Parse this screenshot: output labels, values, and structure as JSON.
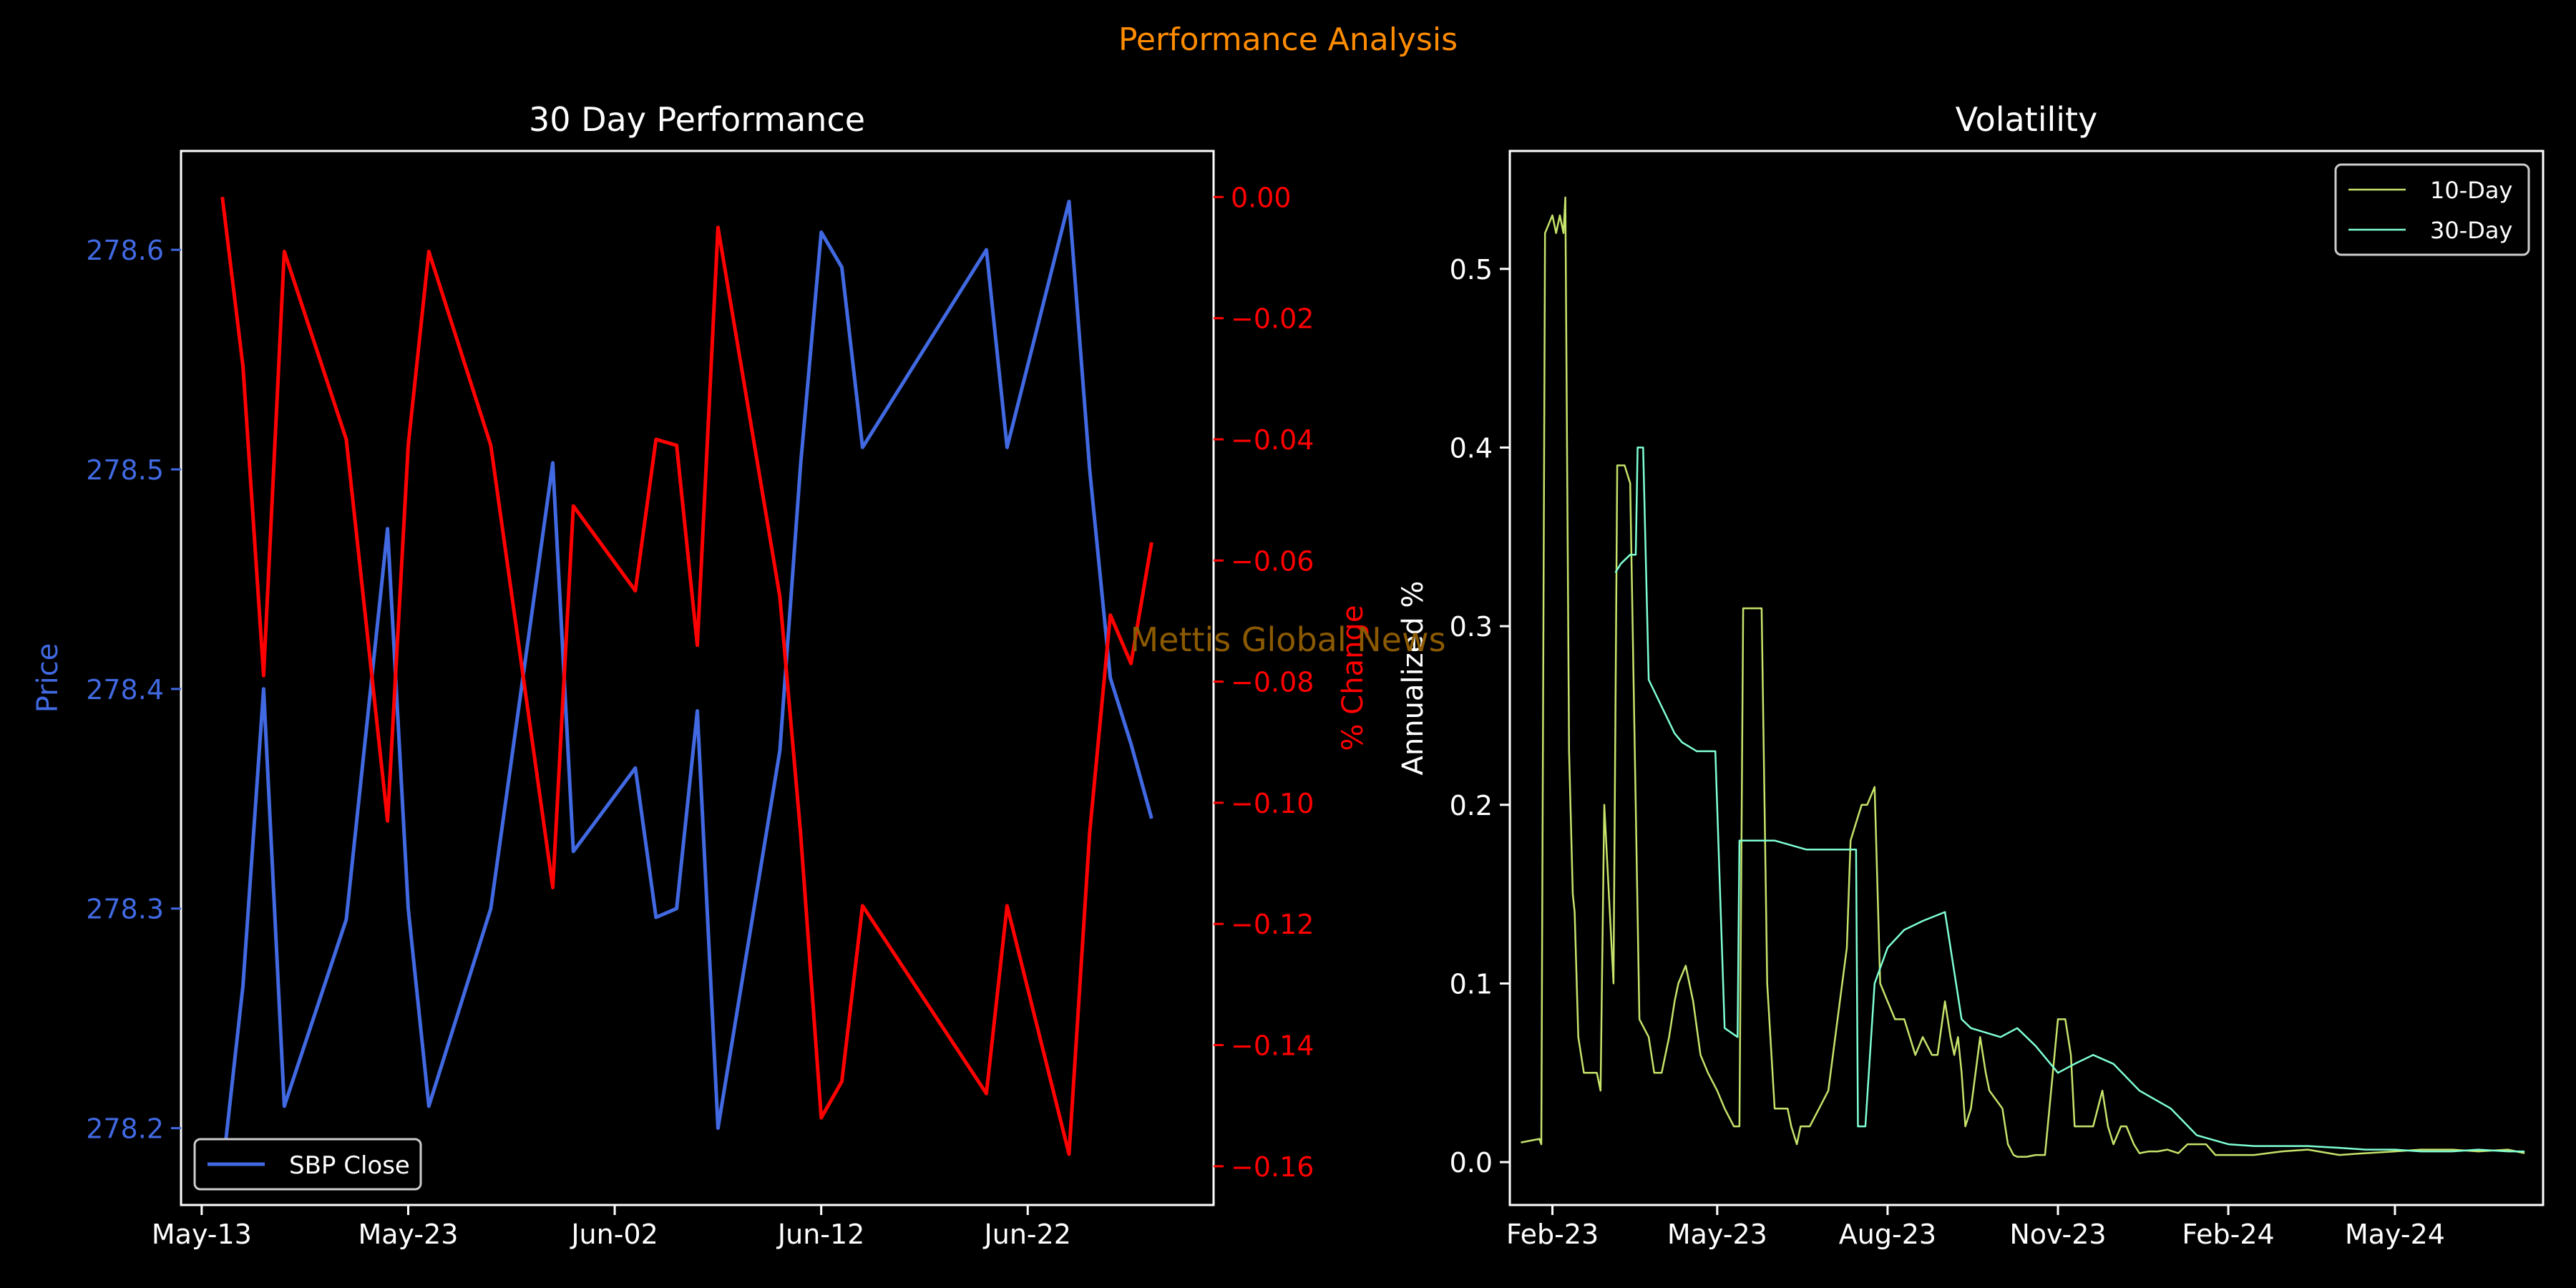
{
  "figure": {
    "suptitle": "Performance Analysis",
    "watermark": "Mettis Global News",
    "colors": {
      "background": "#000000",
      "suptitle": "#ff8c00",
      "price": "#4169e1",
      "pct": "#ff0000",
      "vol10": "#c6e36b",
      "vol30": "#7fffd4",
      "axes": "#ffffff",
      "watermark": "#8b5a00"
    }
  },
  "chart_data": [
    {
      "type": "line",
      "title": "30 Day Performance",
      "xlabel": "",
      "ylabel": "Price",
      "y2label": "% Change",
      "x_ticks": [
        "May-13",
        "May-23",
        "Jun-02",
        "Jun-12",
        "Jun-22"
      ],
      "x_tick_dates": [
        "2024-05-13",
        "2024-05-23",
        "2024-06-02",
        "2024-06-12",
        "2024-06-22"
      ],
      "xlim": [
        "2024-05-12",
        "2024-07-01"
      ],
      "ylim": [
        278.165,
        278.645
      ],
      "y2lim": [
        -0.1664,
        0.0076
      ],
      "y_ticks": [
        "278.2",
        "278.3",
        "278.4",
        "278.5",
        "278.6"
      ],
      "y2_ticks": [
        "0.00",
        "−0.02",
        "−0.04",
        "−0.06",
        "−0.08",
        "−0.10",
        "−0.12",
        "−0.14",
        "−0.16"
      ],
      "legend": {
        "position": "lower-left",
        "entries": [
          "SBP Close"
        ]
      },
      "series": [
        {
          "name": "SBP Close",
          "axis": "left",
          "x": [
            "2024-05-14",
            "2024-05-15",
            "2024-05-16",
            "2024-05-17",
            "2024-05-20",
            "2024-05-22",
            "2024-05-23",
            "2024-05-24",
            "2024-05-27",
            "2024-05-30",
            "2024-05-31",
            "2024-06-03",
            "2024-06-04",
            "2024-06-05",
            "2024-06-06",
            "2024-06-07",
            "2024-06-10",
            "2024-06-11",
            "2024-06-12",
            "2024-06-13",
            "2024-06-14",
            "2024-06-20",
            "2024-06-21",
            "2024-06-24",
            "2024-06-25",
            "2024-06-26",
            "2024-06-27",
            "2024-06-28"
          ],
          "values": [
            278.18,
            278.265,
            278.4,
            278.21,
            278.295,
            278.473,
            278.3,
            278.21,
            278.3,
            278.503,
            278.326,
            278.364,
            278.296,
            278.3,
            278.39,
            278.2,
            278.372,
            278.502,
            278.608,
            278.592,
            278.51,
            278.6,
            278.51,
            278.622,
            278.5,
            278.405,
            278.375,
            278.341
          ]
        },
        {
          "name": "% Change",
          "axis": "right",
          "x": [
            "2024-05-14",
            "2024-05-15",
            "2024-05-16",
            "2024-05-17",
            "2024-05-20",
            "2024-05-22",
            "2024-05-23",
            "2024-05-24",
            "2024-05-27",
            "2024-05-30",
            "2024-05-31",
            "2024-06-03",
            "2024-06-04",
            "2024-06-05",
            "2024-06-06",
            "2024-06-07",
            "2024-06-10",
            "2024-06-11",
            "2024-06-12",
            "2024-06-13",
            "2024-06-14",
            "2024-06-20",
            "2024-06-21",
            "2024-06-24",
            "2024-06-25",
            "2024-06-26",
            "2024-06-27",
            "2024-06-28"
          ],
          "values": [
            0.0,
            -0.028,
            -0.079,
            -0.009,
            -0.04,
            -0.103,
            -0.041,
            -0.009,
            -0.041,
            -0.114,
            -0.051,
            -0.065,
            -0.04,
            -0.041,
            -0.074,
            -0.005,
            -0.066,
            -0.105,
            -0.152,
            -0.146,
            -0.117,
            -0.148,
            -0.117,
            -0.158,
            -0.105,
            -0.069,
            -0.077,
            -0.057
          ]
        }
      ]
    },
    {
      "type": "line",
      "title": "Volatility",
      "xlabel": "",
      "ylabel": "Annualized %",
      "x_ticks": [
        "Feb-23",
        "May-23",
        "Aug-23",
        "Nov-23",
        "Feb-24",
        "May-24"
      ],
      "x_tick_dates": [
        "2023-02-01",
        "2023-05-01",
        "2023-08-01",
        "2023-11-01",
        "2024-02-01",
        "2024-05-01"
      ],
      "xlim": [
        "2023-01-09",
        "2024-07-20"
      ],
      "ylim": [
        -0.024,
        0.566
      ],
      "y_ticks": [
        "0.0",
        "0.1",
        "0.2",
        "0.3",
        "0.4",
        "0.5"
      ],
      "legend": {
        "position": "top-right",
        "entries": [
          "10-Day",
          "30-Day"
        ]
      },
      "series": [
        {
          "name": "10-Day",
          "x": [
            "2023-01-15",
            "2023-01-20",
            "2023-01-25",
            "2023-01-26",
            "2023-01-28",
            "2023-02-01",
            "2023-02-03",
            "2023-02-05",
            "2023-02-07",
            "2023-02-08",
            "2023-02-10",
            "2023-02-12",
            "2023-02-13",
            "2023-02-15",
            "2023-02-18",
            "2023-02-25",
            "2023-02-27",
            "2023-03-01",
            "2023-03-06",
            "2023-03-08",
            "2023-03-12",
            "2023-03-15",
            "2023-03-20",
            "2023-03-25",
            "2023-03-28",
            "2023-04-01",
            "2023-04-05",
            "2023-04-08",
            "2023-04-10",
            "2023-04-14",
            "2023-04-18",
            "2023-04-22",
            "2023-04-26",
            "2023-05-01",
            "2023-05-05",
            "2023-05-10",
            "2023-05-13",
            "2023-05-15",
            "2023-05-18",
            "2023-05-20",
            "2023-05-22",
            "2023-05-25",
            "2023-05-28",
            "2023-06-01",
            "2023-06-05",
            "2023-06-08",
            "2023-06-10",
            "2023-06-13",
            "2023-06-15",
            "2023-06-20",
            "2023-06-25",
            "2023-06-30",
            "2023-07-05",
            "2023-07-10",
            "2023-07-12",
            "2023-07-15",
            "2023-07-18",
            "2023-07-21",
            "2023-07-25",
            "2023-07-28",
            "2023-08-01",
            "2023-08-05",
            "2023-08-08",
            "2023-08-10",
            "2023-08-13",
            "2023-08-16",
            "2023-08-20",
            "2023-08-25",
            "2023-08-28",
            "2023-09-01",
            "2023-09-04",
            "2023-09-06",
            "2023-09-08",
            "2023-09-10",
            "2023-09-12",
            "2023-09-15",
            "2023-09-20",
            "2023-09-23",
            "2023-09-25",
            "2023-10-02",
            "2023-10-05",
            "2023-10-08",
            "2023-10-10",
            "2023-10-15",
            "2023-10-20",
            "2023-10-25",
            "2023-11-01",
            "2023-11-05",
            "2023-11-08",
            "2023-11-10",
            "2023-11-13",
            "2023-11-15",
            "2023-11-20",
            "2023-11-25",
            "2023-11-28",
            "2023-12-01",
            "2023-12-05",
            "2023-12-08",
            "2023-12-12",
            "2023-12-15",
            "2023-12-20",
            "2023-12-25",
            "2023-12-30",
            "2024-01-05",
            "2024-01-10",
            "2024-01-20",
            "2024-01-25",
            "2024-02-01",
            "2024-02-15",
            "2024-03-01",
            "2024-03-15",
            "2024-04-01",
            "2024-04-15",
            "2024-05-01",
            "2024-05-15",
            "2024-06-01",
            "2024-06-15",
            "2024-07-01",
            "2024-07-10"
          ],
          "values": [
            0.011,
            0.012,
            0.013,
            0.01,
            0.52,
            0.53,
            0.52,
            0.53,
            0.52,
            0.54,
            0.23,
            0.15,
            0.14,
            0.07,
            0.05,
            0.05,
            0.04,
            0.2,
            0.1,
            0.39,
            0.39,
            0.38,
            0.08,
            0.07,
            0.05,
            0.05,
            0.07,
            0.09,
            0.1,
            0.11,
            0.09,
            0.06,
            0.05,
            0.04,
            0.03,
            0.02,
            0.02,
            0.31,
            0.31,
            0.31,
            0.31,
            0.31,
            0.1,
            0.03,
            0.03,
            0.03,
            0.02,
            0.01,
            0.02,
            0.02,
            0.03,
            0.04,
            0.08,
            0.12,
            0.18,
            0.19,
            0.2,
            0.2,
            0.21,
            0.1,
            0.09,
            0.08,
            0.08,
            0.08,
            0.07,
            0.06,
            0.07,
            0.06,
            0.06,
            0.09,
            0.07,
            0.06,
            0.07,
            0.05,
            0.02,
            0.03,
            0.07,
            0.05,
            0.04,
            0.03,
            0.01,
            0.004,
            0.003,
            0.003,
            0.004,
            0.004,
            0.08,
            0.08,
            0.06,
            0.02,
            0.02,
            0.02,
            0.02,
            0.04,
            0.02,
            0.01,
            0.02,
            0.02,
            0.01,
            0.005,
            0.006,
            0.006,
            0.007,
            0.005,
            0.01,
            0.01,
            0.004,
            0.004,
            0.004,
            0.006,
            0.007,
            0.004,
            0.005,
            0.006,
            0.007,
            0.007,
            0.006,
            0.007,
            0.005
          ]
        },
        {
          "name": "30-Day",
          "x": [
            "2023-03-07",
            "2023-03-10",
            "2023-03-15",
            "2023-03-18",
            "2023-03-19",
            "2023-03-22",
            "2023-03-25",
            "2023-04-08",
            "2023-04-12",
            "2023-04-20",
            "2023-04-30",
            "2023-05-05",
            "2023-05-12",
            "2023-05-13",
            "2023-06-01",
            "2023-06-18",
            "2023-07-15",
            "2023-07-16",
            "2023-07-20",
            "2023-07-25",
            "2023-08-01",
            "2023-08-10",
            "2023-08-20",
            "2023-09-01",
            "2023-09-10",
            "2023-09-15",
            "2023-10-01",
            "2023-10-10",
            "2023-10-15",
            "2023-10-20",
            "2023-11-01",
            "2023-11-10",
            "2023-11-20",
            "2023-12-01",
            "2023-12-15",
            "2024-01-01",
            "2024-01-15",
            "2024-02-01",
            "2024-02-15",
            "2024-03-01",
            "2024-03-15",
            "2024-04-01",
            "2024-04-15",
            "2024-05-01",
            "2024-05-15",
            "2024-06-01",
            "2024-06-15",
            "2024-07-01",
            "2024-07-10"
          ],
          "values": [
            0.33,
            0.335,
            0.34,
            0.34,
            0.4,
            0.4,
            0.27,
            0.24,
            0.235,
            0.23,
            0.23,
            0.075,
            0.07,
            0.18,
            0.18,
            0.175,
            0.175,
            0.02,
            0.02,
            0.1,
            0.12,
            0.13,
            0.135,
            0.14,
            0.08,
            0.075,
            0.07,
            0.075,
            0.07,
            0.065,
            0.05,
            0.055,
            0.06,
            0.055,
            0.04,
            0.03,
            0.015,
            0.01,
            0.009,
            0.009,
            0.009,
            0.008,
            0.007,
            0.007,
            0.006,
            0.006,
            0.007,
            0.006,
            0.006
          ]
        }
      ]
    }
  ]
}
